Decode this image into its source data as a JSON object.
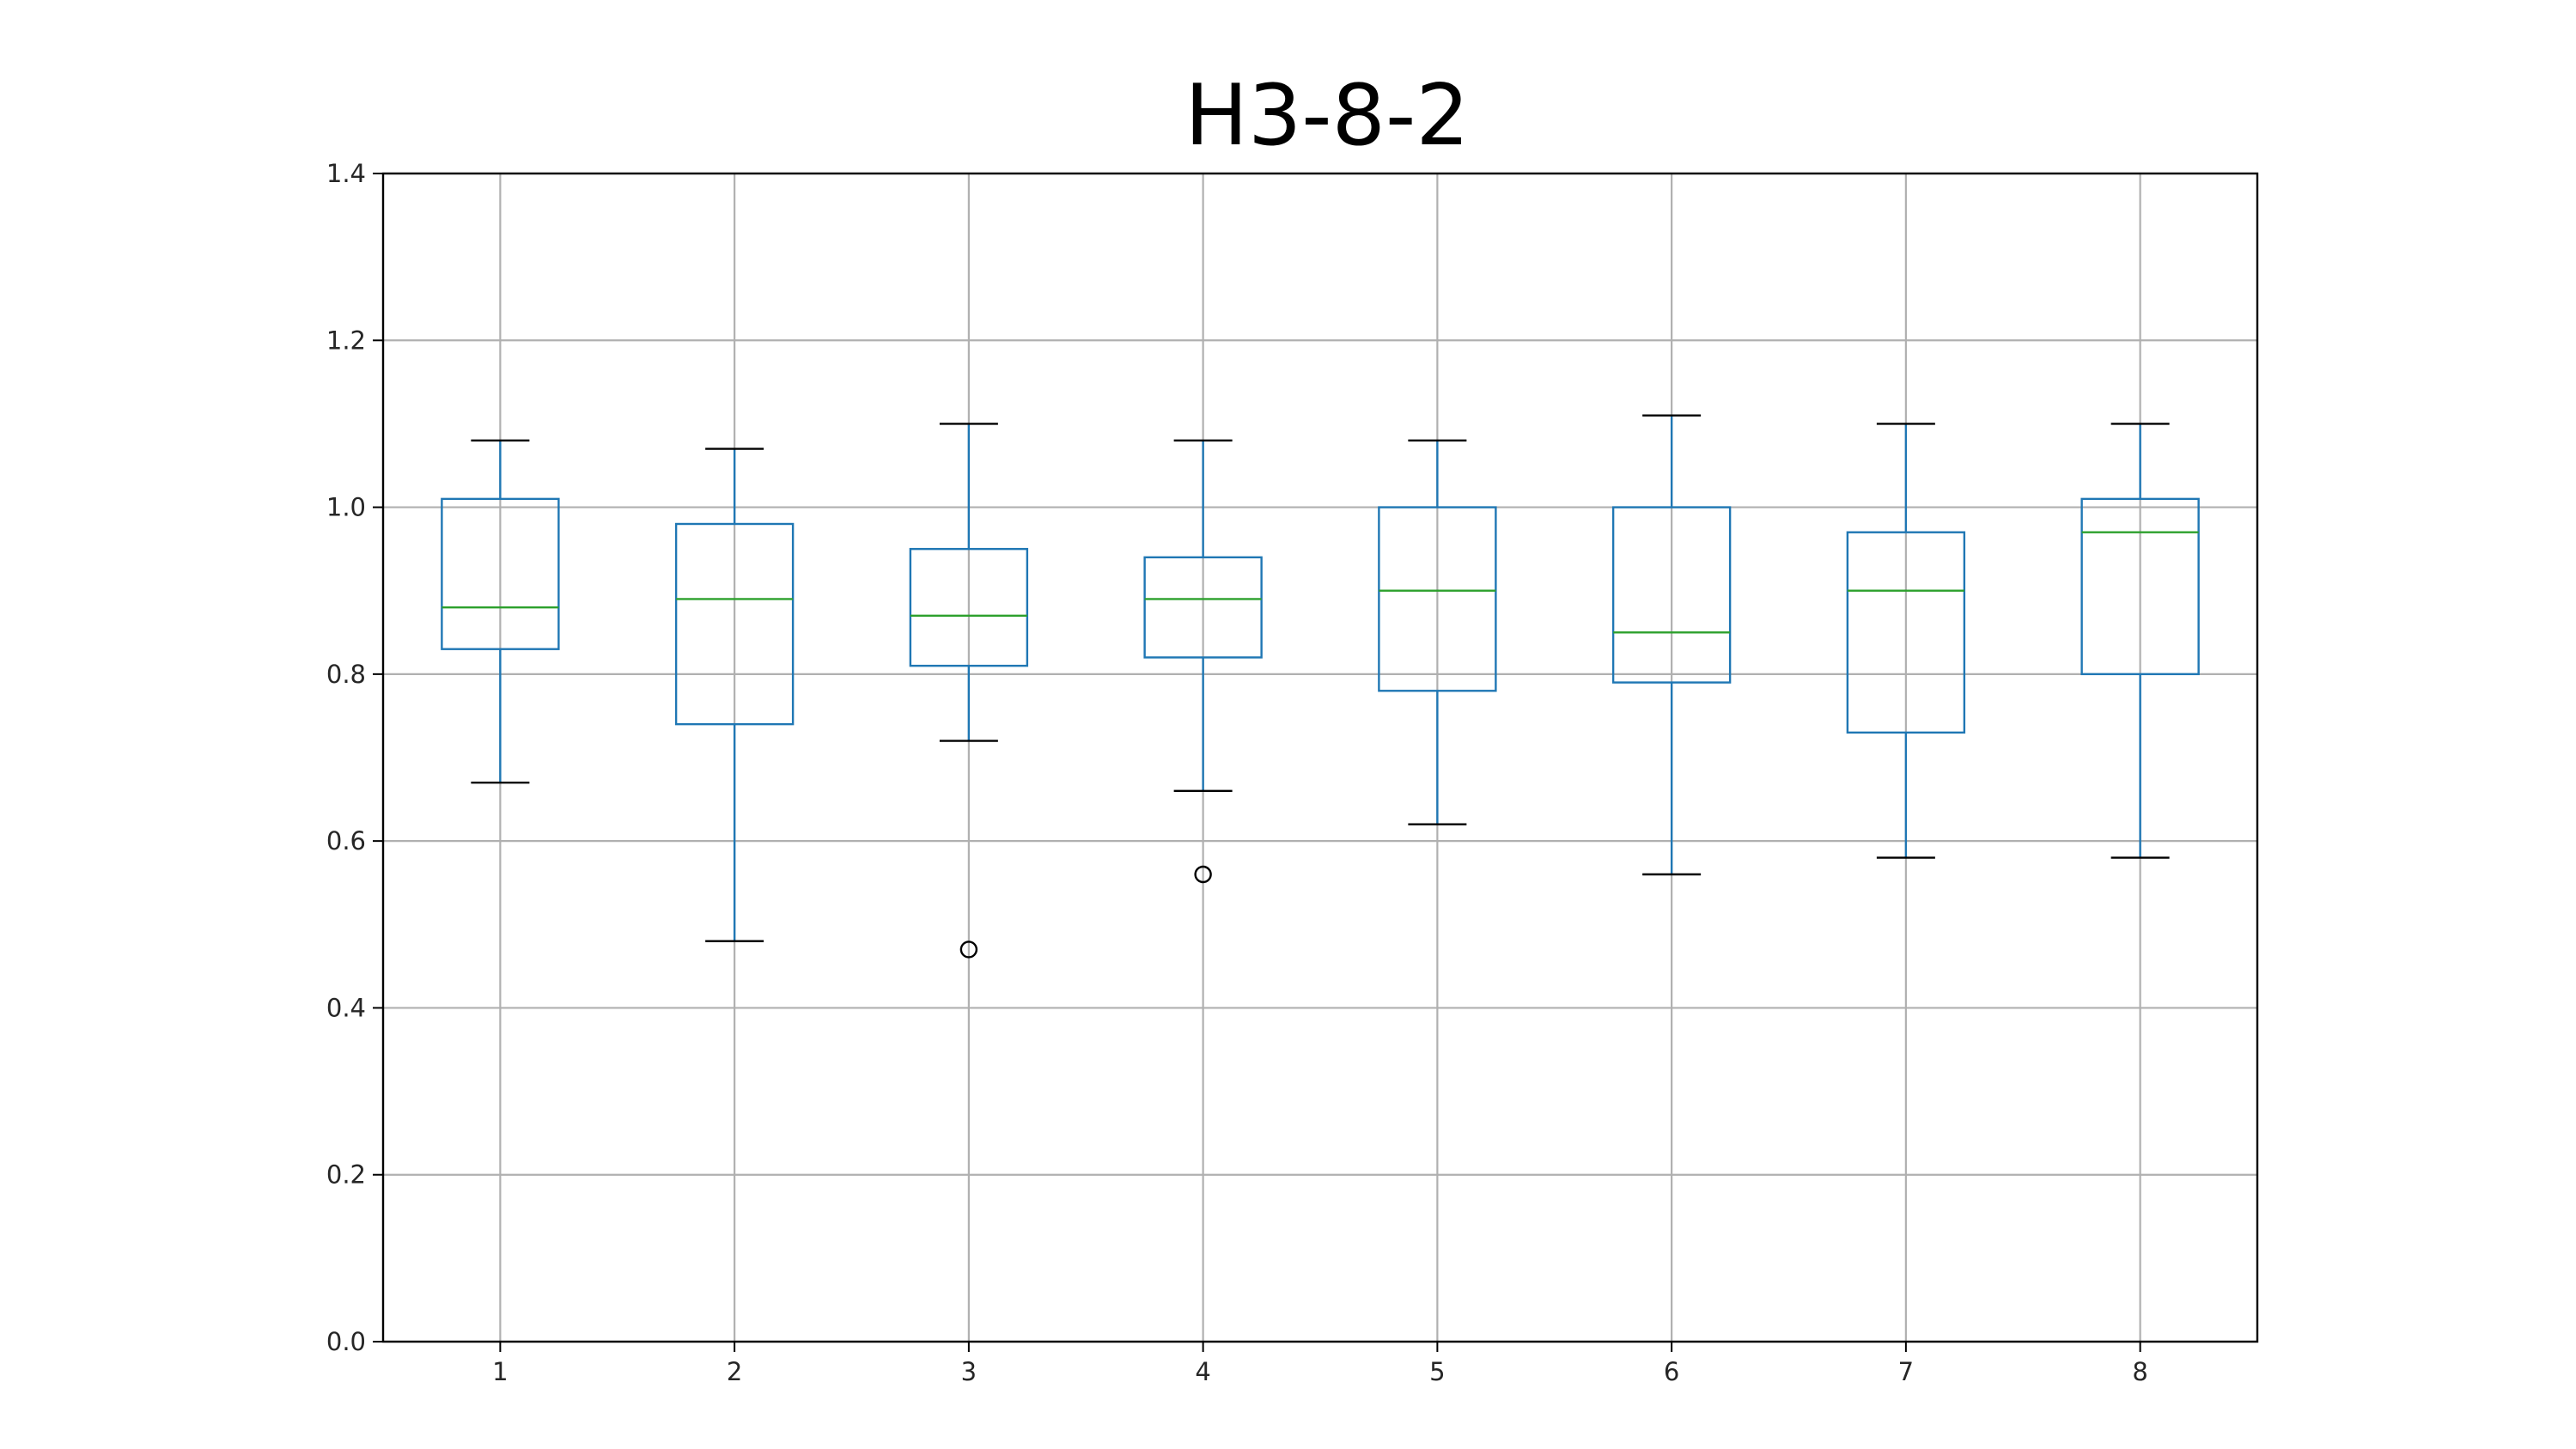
{
  "chart_data": {
    "type": "box",
    "title": "H3-8-2",
    "xlabel": "",
    "ylabel": "",
    "categories": [
      "1",
      "2",
      "3",
      "4",
      "5",
      "6",
      "7",
      "8"
    ],
    "ylim": [
      0.0,
      1.4
    ],
    "yticks": [
      0.0,
      0.2,
      0.4,
      0.6,
      0.8,
      1.0,
      1.2,
      1.4
    ],
    "ytick_labels": [
      "0.0",
      "0.2",
      "0.4",
      "0.6",
      "0.8",
      "1.0",
      "1.2",
      "1.4"
    ],
    "grid": true,
    "boxes": [
      {
        "category": "1",
        "whisker_low": 0.67,
        "q1": 0.83,
        "median": 0.88,
        "q3": 1.01,
        "whisker_high": 1.08,
        "outliers": []
      },
      {
        "category": "2",
        "whisker_low": 0.48,
        "q1": 0.74,
        "median": 0.89,
        "q3": 0.98,
        "whisker_high": 1.07,
        "outliers": []
      },
      {
        "category": "3",
        "whisker_low": 0.72,
        "q1": 0.81,
        "median": 0.87,
        "q3": 0.95,
        "whisker_high": 1.1,
        "outliers": [
          0.47
        ]
      },
      {
        "category": "4",
        "whisker_low": 0.66,
        "q1": 0.82,
        "median": 0.89,
        "q3": 0.94,
        "whisker_high": 1.08,
        "outliers": [
          0.56
        ]
      },
      {
        "category": "5",
        "whisker_low": 0.62,
        "q1": 0.78,
        "median": 0.9,
        "q3": 1.0,
        "whisker_high": 1.08,
        "outliers": []
      },
      {
        "category": "6",
        "whisker_low": 0.56,
        "q1": 0.79,
        "median": 0.85,
        "q3": 1.0,
        "whisker_high": 1.11,
        "outliers": []
      },
      {
        "category": "7",
        "whisker_low": 0.58,
        "q1": 0.73,
        "median": 0.9,
        "q3": 0.97,
        "whisker_high": 1.1,
        "outliers": []
      },
      {
        "category": "8",
        "whisker_low": 0.58,
        "q1": 0.8,
        "median": 0.97,
        "q3": 1.01,
        "whisker_high": 1.1,
        "outliers": []
      }
    ],
    "colors": {
      "box": "#1f77b4",
      "median": "#2ca02c",
      "whisker_cap": "#000000",
      "outlier": "#000000",
      "grid": "#b0b0b0",
      "axes": "#000000"
    }
  }
}
